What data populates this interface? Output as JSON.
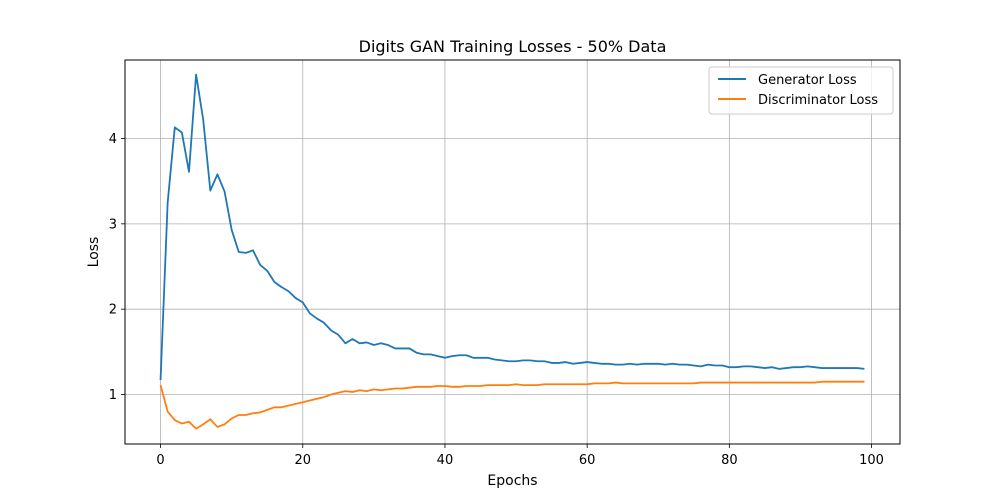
{
  "chart_data": {
    "type": "line",
    "title": "Digits GAN Training Losses - 50% Data",
    "xlabel": "Epochs",
    "ylabel": "Loss",
    "xlim": [
      -5,
      104
    ],
    "ylim": [
      0.42,
      4.92
    ],
    "xticks": [
      0,
      20,
      40,
      60,
      80,
      100
    ],
    "yticks": [
      1,
      2,
      3,
      4
    ],
    "grid": true,
    "legend_position": "top-right",
    "x": [
      0,
      1,
      2,
      3,
      4,
      5,
      6,
      7,
      8,
      9,
      10,
      11,
      12,
      13,
      14,
      15,
      16,
      17,
      18,
      19,
      20,
      21,
      22,
      23,
      24,
      25,
      26,
      27,
      28,
      29,
      30,
      31,
      32,
      33,
      34,
      35,
      36,
      37,
      38,
      39,
      40,
      41,
      42,
      43,
      44,
      45,
      46,
      47,
      48,
      49,
      50,
      51,
      52,
      53,
      54,
      55,
      56,
      57,
      58,
      59,
      60,
      61,
      62,
      63,
      64,
      65,
      66,
      67,
      68,
      69,
      70,
      71,
      72,
      73,
      74,
      75,
      76,
      77,
      78,
      79,
      80,
      81,
      82,
      83,
      84,
      85,
      86,
      87,
      88,
      89,
      90,
      91,
      92,
      93,
      94,
      95,
      96,
      97,
      98,
      99
    ],
    "series": [
      {
        "name": "Generator Loss",
        "color": "#1f77b4",
        "values": [
          1.17,
          3.25,
          4.13,
          4.07,
          3.61,
          4.75,
          4.22,
          3.39,
          3.58,
          3.38,
          2.93,
          2.67,
          2.66,
          2.69,
          2.52,
          2.45,
          2.32,
          2.26,
          2.21,
          2.13,
          2.08,
          1.95,
          1.89,
          1.84,
          1.75,
          1.7,
          1.6,
          1.65,
          1.6,
          1.61,
          1.58,
          1.6,
          1.58,
          1.54,
          1.54,
          1.54,
          1.49,
          1.47,
          1.47,
          1.45,
          1.43,
          1.45,
          1.46,
          1.46,
          1.43,
          1.43,
          1.43,
          1.41,
          1.4,
          1.39,
          1.39,
          1.4,
          1.4,
          1.39,
          1.39,
          1.37,
          1.37,
          1.38,
          1.36,
          1.37,
          1.38,
          1.37,
          1.36,
          1.36,
          1.35,
          1.35,
          1.36,
          1.35,
          1.36,
          1.36,
          1.36,
          1.35,
          1.36,
          1.35,
          1.35,
          1.34,
          1.33,
          1.35,
          1.34,
          1.34,
          1.32,
          1.32,
          1.33,
          1.33,
          1.32,
          1.31,
          1.32,
          1.3,
          1.31,
          1.32,
          1.32,
          1.33,
          1.32,
          1.31,
          1.31,
          1.31,
          1.31,
          1.31,
          1.31,
          1.3
        ]
      },
      {
        "name": "Discriminator Loss",
        "color": "#ff7f0e",
        "values": [
          1.11,
          0.8,
          0.7,
          0.66,
          0.68,
          0.6,
          0.65,
          0.71,
          0.62,
          0.65,
          0.72,
          0.76,
          0.76,
          0.78,
          0.79,
          0.82,
          0.85,
          0.85,
          0.87,
          0.89,
          0.91,
          0.93,
          0.95,
          0.97,
          1.0,
          1.02,
          1.04,
          1.03,
          1.05,
          1.04,
          1.06,
          1.05,
          1.06,
          1.07,
          1.07,
          1.08,
          1.09,
          1.09,
          1.09,
          1.1,
          1.1,
          1.09,
          1.09,
          1.1,
          1.1,
          1.1,
          1.11,
          1.11,
          1.11,
          1.11,
          1.12,
          1.11,
          1.11,
          1.11,
          1.12,
          1.12,
          1.12,
          1.12,
          1.12,
          1.12,
          1.12,
          1.13,
          1.13,
          1.13,
          1.14,
          1.13,
          1.13,
          1.13,
          1.13,
          1.13,
          1.13,
          1.13,
          1.13,
          1.13,
          1.13,
          1.13,
          1.14,
          1.14,
          1.14,
          1.14,
          1.14,
          1.14,
          1.14,
          1.14,
          1.14,
          1.14,
          1.14,
          1.14,
          1.14,
          1.14,
          1.14,
          1.14,
          1.14,
          1.15,
          1.15,
          1.15,
          1.15,
          1.15,
          1.15,
          1.15
        ]
      }
    ]
  }
}
